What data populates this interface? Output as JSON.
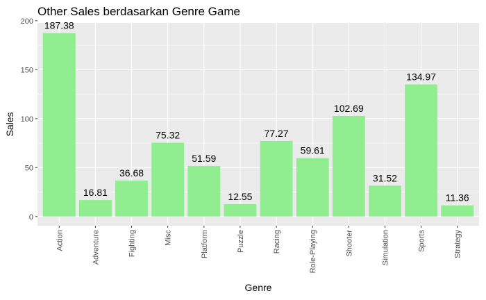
{
  "chart_data": {
    "type": "bar",
    "title": "Other Sales berdasarkan Genre Game",
    "xlabel": "Genre",
    "ylabel": "Sales",
    "categories": [
      "Action",
      "Adventure",
      "Fighting",
      "Misc",
      "Platform",
      "Puzzle",
      "Racing",
      "Role-Playing",
      "Shooter",
      "Simulation",
      "Sports",
      "Strategy"
    ],
    "values": [
      187.38,
      16.81,
      36.68,
      75.32,
      51.59,
      12.55,
      77.27,
      59.61,
      102.69,
      31.52,
      134.97,
      11.36
    ],
    "value_labels": [
      "187.38",
      "16.81",
      "36.68",
      "75.32",
      "51.59",
      "12.55",
      "77.27",
      "59.61",
      "102.69",
      "31.52",
      "134.97",
      "11.36"
    ],
    "y_ticks": [
      0,
      50,
      100,
      150,
      200
    ],
    "ylim": [
      -9.4,
      197.8
    ],
    "grid": true,
    "legend": "none",
    "bar_color": "#90ee90",
    "panel_color": "#ebebeb",
    "grid_color": "#ffffff"
  }
}
